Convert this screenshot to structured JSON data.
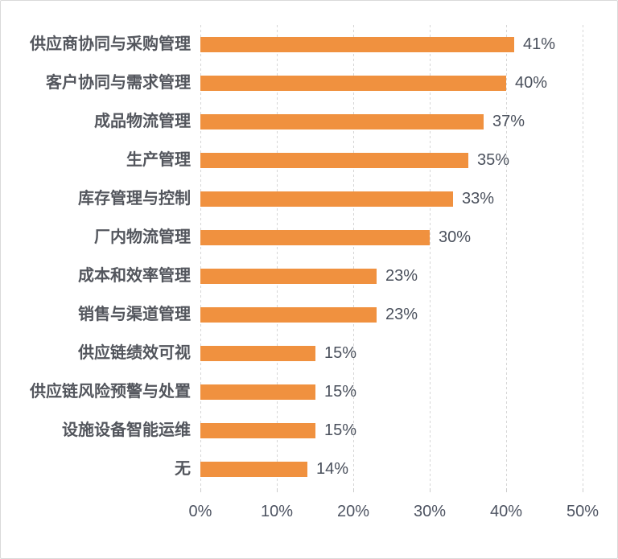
{
  "chart_data": {
    "type": "bar",
    "orientation": "horizontal",
    "title": "",
    "categories": [
      "供应商协同与采购管理",
      "客户协同与需求管理",
      "成品物流管理",
      "生产管理",
      "库存管理与控制",
      "厂内物流管理",
      "成本和效率管理",
      "销售与渠道管理",
      "供应链绩效可视",
      "供应链风险预警与处置",
      "设施设备智能运维",
      "无"
    ],
    "values": [
      41,
      40,
      37,
      35,
      33,
      30,
      23,
      23,
      15,
      15,
      15,
      14
    ],
    "value_labels": [
      "41%",
      "40%",
      "37%",
      "35%",
      "33%",
      "30%",
      "23%",
      "23%",
      "15%",
      "15%",
      "15%",
      "14%"
    ],
    "x_ticks": [
      "0%",
      "10%",
      "20%",
      "30%",
      "40%",
      "50%"
    ],
    "x_tick_values": [
      0,
      10,
      20,
      30,
      40,
      50
    ],
    "xlim": [
      0,
      50
    ],
    "grid": true,
    "gridline_style": "dashed",
    "legend": "none",
    "colors": {
      "bar": "#F0913F",
      "category_text": "#53565D",
      "value_text": "#4A505C",
      "axis_text": "#4E5462",
      "gridline": "#D6D6D6",
      "background": "#FFFFFF",
      "border": "#D9D9D9"
    }
  }
}
